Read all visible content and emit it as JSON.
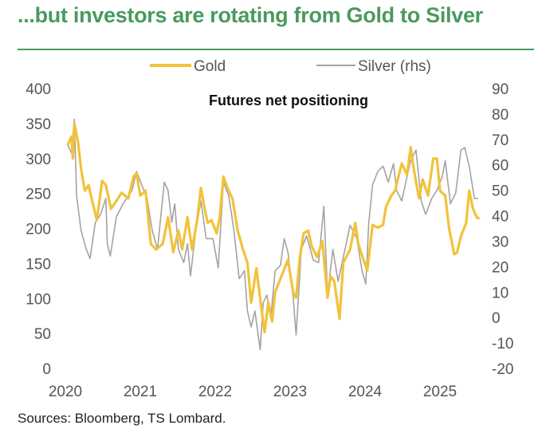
{
  "title": "...but investors are rotating from Gold to Silver",
  "source": "Sources: Bloomberg, TS Lombard.",
  "chart_data": {
    "type": "line",
    "title": "Futures net positioning",
    "x_ticks": [
      "2020",
      "2021",
      "2022",
      "2023",
      "2024",
      "2025"
    ],
    "xlim": [
      2020,
      2025.75
    ],
    "y_left": {
      "ylim": [
        0,
        400
      ],
      "ticks": [
        "0",
        "50",
        "100",
        "150",
        "200",
        "250",
        "300",
        "350",
        "400"
      ]
    },
    "y_right": {
      "ylim": [
        -20,
        90
      ],
      "ticks": [
        "-20",
        "-10",
        "0",
        "10",
        "20",
        "30",
        "40",
        "50",
        "60",
        "70",
        "80",
        "90"
      ]
    },
    "grid": false,
    "legend": "top-center",
    "series": [
      {
        "name": "Gold",
        "axis": "left",
        "color": "#f2c23a",
        "points": [
          [
            2020.03,
            319
          ],
          [
            2020.08,
            331
          ],
          [
            2020.1,
            300
          ],
          [
            2020.12,
            350
          ],
          [
            2020.17,
            323
          ],
          [
            2020.21,
            285
          ],
          [
            2020.26,
            254
          ],
          [
            2020.31,
            262
          ],
          [
            2020.35,
            243
          ],
          [
            2020.42,
            212
          ],
          [
            2020.49,
            268
          ],
          [
            2020.54,
            262
          ],
          [
            2020.61,
            228
          ],
          [
            2020.68,
            239
          ],
          [
            2020.75,
            251
          ],
          [
            2020.84,
            243
          ],
          [
            2020.91,
            274
          ],
          [
            2020.95,
            279
          ],
          [
            2021.0,
            247
          ],
          [
            2021.07,
            254
          ],
          [
            2021.14,
            178
          ],
          [
            2021.21,
            170
          ],
          [
            2021.3,
            178
          ],
          [
            2021.37,
            216
          ],
          [
            2021.44,
            166
          ],
          [
            2021.51,
            197
          ],
          [
            2021.56,
            170
          ],
          [
            2021.63,
            216
          ],
          [
            2021.69,
            170
          ],
          [
            2021.76,
            212
          ],
          [
            2021.81,
            258
          ],
          [
            2021.86,
            228
          ],
          [
            2021.9,
            208
          ],
          [
            2021.95,
            212
          ],
          [
            2022.02,
            193
          ],
          [
            2022.06,
            216
          ],
          [
            2022.11,
            274
          ],
          [
            2022.18,
            254
          ],
          [
            2022.23,
            243
          ],
          [
            2022.3,
            197
          ],
          [
            2022.37,
            170
          ],
          [
            2022.43,
            151
          ],
          [
            2022.48,
            94
          ],
          [
            2022.55,
            143
          ],
          [
            2022.62,
            82
          ],
          [
            2022.66,
            52
          ],
          [
            2022.71,
            94
          ],
          [
            2022.76,
            67
          ],
          [
            2022.8,
            109
          ],
          [
            2022.87,
            128
          ],
          [
            2022.97,
            155
          ],
          [
            2023.04,
            109
          ],
          [
            2023.08,
            101
          ],
          [
            2023.13,
            159
          ],
          [
            2023.18,
            193
          ],
          [
            2023.24,
            197
          ],
          [
            2023.29,
            174
          ],
          [
            2023.36,
            159
          ],
          [
            2023.43,
            182
          ],
          [
            2023.5,
            101
          ],
          [
            2023.54,
            132
          ],
          [
            2023.59,
            124
          ],
          [
            2023.66,
            71
          ],
          [
            2023.71,
            151
          ],
          [
            2023.8,
            170
          ],
          [
            2023.87,
            208
          ],
          [
            2023.91,
            178
          ],
          [
            2023.98,
            155
          ],
          [
            2024.03,
            140
          ],
          [
            2024.1,
            205
          ],
          [
            2024.17,
            201
          ],
          [
            2024.24,
            205
          ],
          [
            2024.28,
            231
          ],
          [
            2024.35,
            247
          ],
          [
            2024.4,
            254
          ],
          [
            2024.49,
            293
          ],
          [
            2024.56,
            277
          ],
          [
            2024.61,
            316
          ],
          [
            2024.65,
            285
          ],
          [
            2024.72,
            243
          ],
          [
            2024.77,
            270
          ],
          [
            2024.84,
            247
          ],
          [
            2024.91,
            300
          ],
          [
            2024.96,
            300
          ],
          [
            2025.0,
            254
          ],
          [
            2025.07,
            247
          ],
          [
            2025.12,
            201
          ],
          [
            2025.19,
            163
          ],
          [
            2025.23,
            166
          ],
          [
            2025.28,
            189
          ],
          [
            2025.35,
            208
          ],
          [
            2025.39,
            254
          ],
          [
            2025.44,
            228
          ],
          [
            2025.49,
            216
          ],
          [
            2025.53,
            214
          ]
        ]
      },
      {
        "name": "Silver (rhs)",
        "axis": "right",
        "color": "#a3a3a3",
        "points": [
          [
            2020.03,
            67.9
          ],
          [
            2020.08,
            64.7
          ],
          [
            2020.12,
            77.9
          ],
          [
            2020.15,
            47.9
          ],
          [
            2020.21,
            34.2
          ],
          [
            2020.28,
            26.8
          ],
          [
            2020.33,
            23.2
          ],
          [
            2020.4,
            37.4
          ],
          [
            2020.47,
            40.5
          ],
          [
            2020.54,
            46.8
          ],
          [
            2020.56,
            29.0
          ],
          [
            2020.6,
            24.2
          ],
          [
            2020.68,
            39.5
          ],
          [
            2020.77,
            44.7
          ],
          [
            2020.89,
            50.0
          ],
          [
            2020.95,
            57.4
          ],
          [
            2021.02,
            52.1
          ],
          [
            2021.09,
            46.8
          ],
          [
            2021.16,
            34.2
          ],
          [
            2021.23,
            26.8
          ],
          [
            2021.28,
            41.6
          ],
          [
            2021.32,
            53.2
          ],
          [
            2021.37,
            50.0
          ],
          [
            2021.42,
            37.4
          ],
          [
            2021.46,
            44.7
          ],
          [
            2021.51,
            26.8
          ],
          [
            2021.58,
            21.6
          ],
          [
            2021.63,
            29.0
          ],
          [
            2021.67,
            16.3
          ],
          [
            2021.74,
            34.2
          ],
          [
            2021.81,
            45.8
          ],
          [
            2021.88,
            31.0
          ],
          [
            2021.97,
            31.0
          ],
          [
            2022.04,
            19.5
          ],
          [
            2022.11,
            53.2
          ],
          [
            2022.18,
            47.9
          ],
          [
            2022.25,
            34.2
          ],
          [
            2022.32,
            15.3
          ],
          [
            2022.39,
            18.4
          ],
          [
            2022.43,
            2.6
          ],
          [
            2022.48,
            -3.7
          ],
          [
            2022.53,
            2.6
          ],
          [
            2022.6,
            -12.6
          ],
          [
            2022.64,
            5.8
          ],
          [
            2022.69,
            8.9
          ],
          [
            2022.74,
            -0.5
          ],
          [
            2022.8,
            18.4
          ],
          [
            2022.87,
            20.5
          ],
          [
            2022.92,
            31.0
          ],
          [
            2022.97,
            25.8
          ],
          [
            2023.04,
            7.9
          ],
          [
            2023.08,
            -6.8
          ],
          [
            2023.15,
            26.8
          ],
          [
            2023.22,
            32.1
          ],
          [
            2023.31,
            22.6
          ],
          [
            2023.38,
            21.6
          ],
          [
            2023.45,
            43.7
          ],
          [
            2023.5,
            8.9
          ],
          [
            2023.57,
            26.8
          ],
          [
            2023.64,
            14.2
          ],
          [
            2023.71,
            23.7
          ],
          [
            2023.8,
            36.3
          ],
          [
            2023.89,
            31.0
          ],
          [
            2023.96,
            18.4
          ],
          [
            2024.01,
            13.2
          ],
          [
            2024.05,
            37.4
          ],
          [
            2024.1,
            52.1
          ],
          [
            2024.17,
            57.4
          ],
          [
            2024.24,
            59.5
          ],
          [
            2024.31,
            53.2
          ],
          [
            2024.38,
            60.5
          ],
          [
            2024.42,
            50.0
          ],
          [
            2024.49,
            45.8
          ],
          [
            2024.56,
            55.3
          ],
          [
            2024.61,
            61.6
          ],
          [
            2024.68,
            65.8
          ],
          [
            2024.75,
            45.8
          ],
          [
            2024.81,
            40.5
          ],
          [
            2024.89,
            46.8
          ],
          [
            2024.96,
            50.0
          ],
          [
            2025.03,
            55.3
          ],
          [
            2025.07,
            61.6
          ],
          [
            2025.14,
            44.7
          ],
          [
            2025.21,
            48.9
          ],
          [
            2025.28,
            65.8
          ],
          [
            2025.33,
            66.8
          ],
          [
            2025.39,
            59.5
          ],
          [
            2025.46,
            46.8
          ],
          [
            2025.51,
            46.8
          ]
        ]
      }
    ]
  }
}
